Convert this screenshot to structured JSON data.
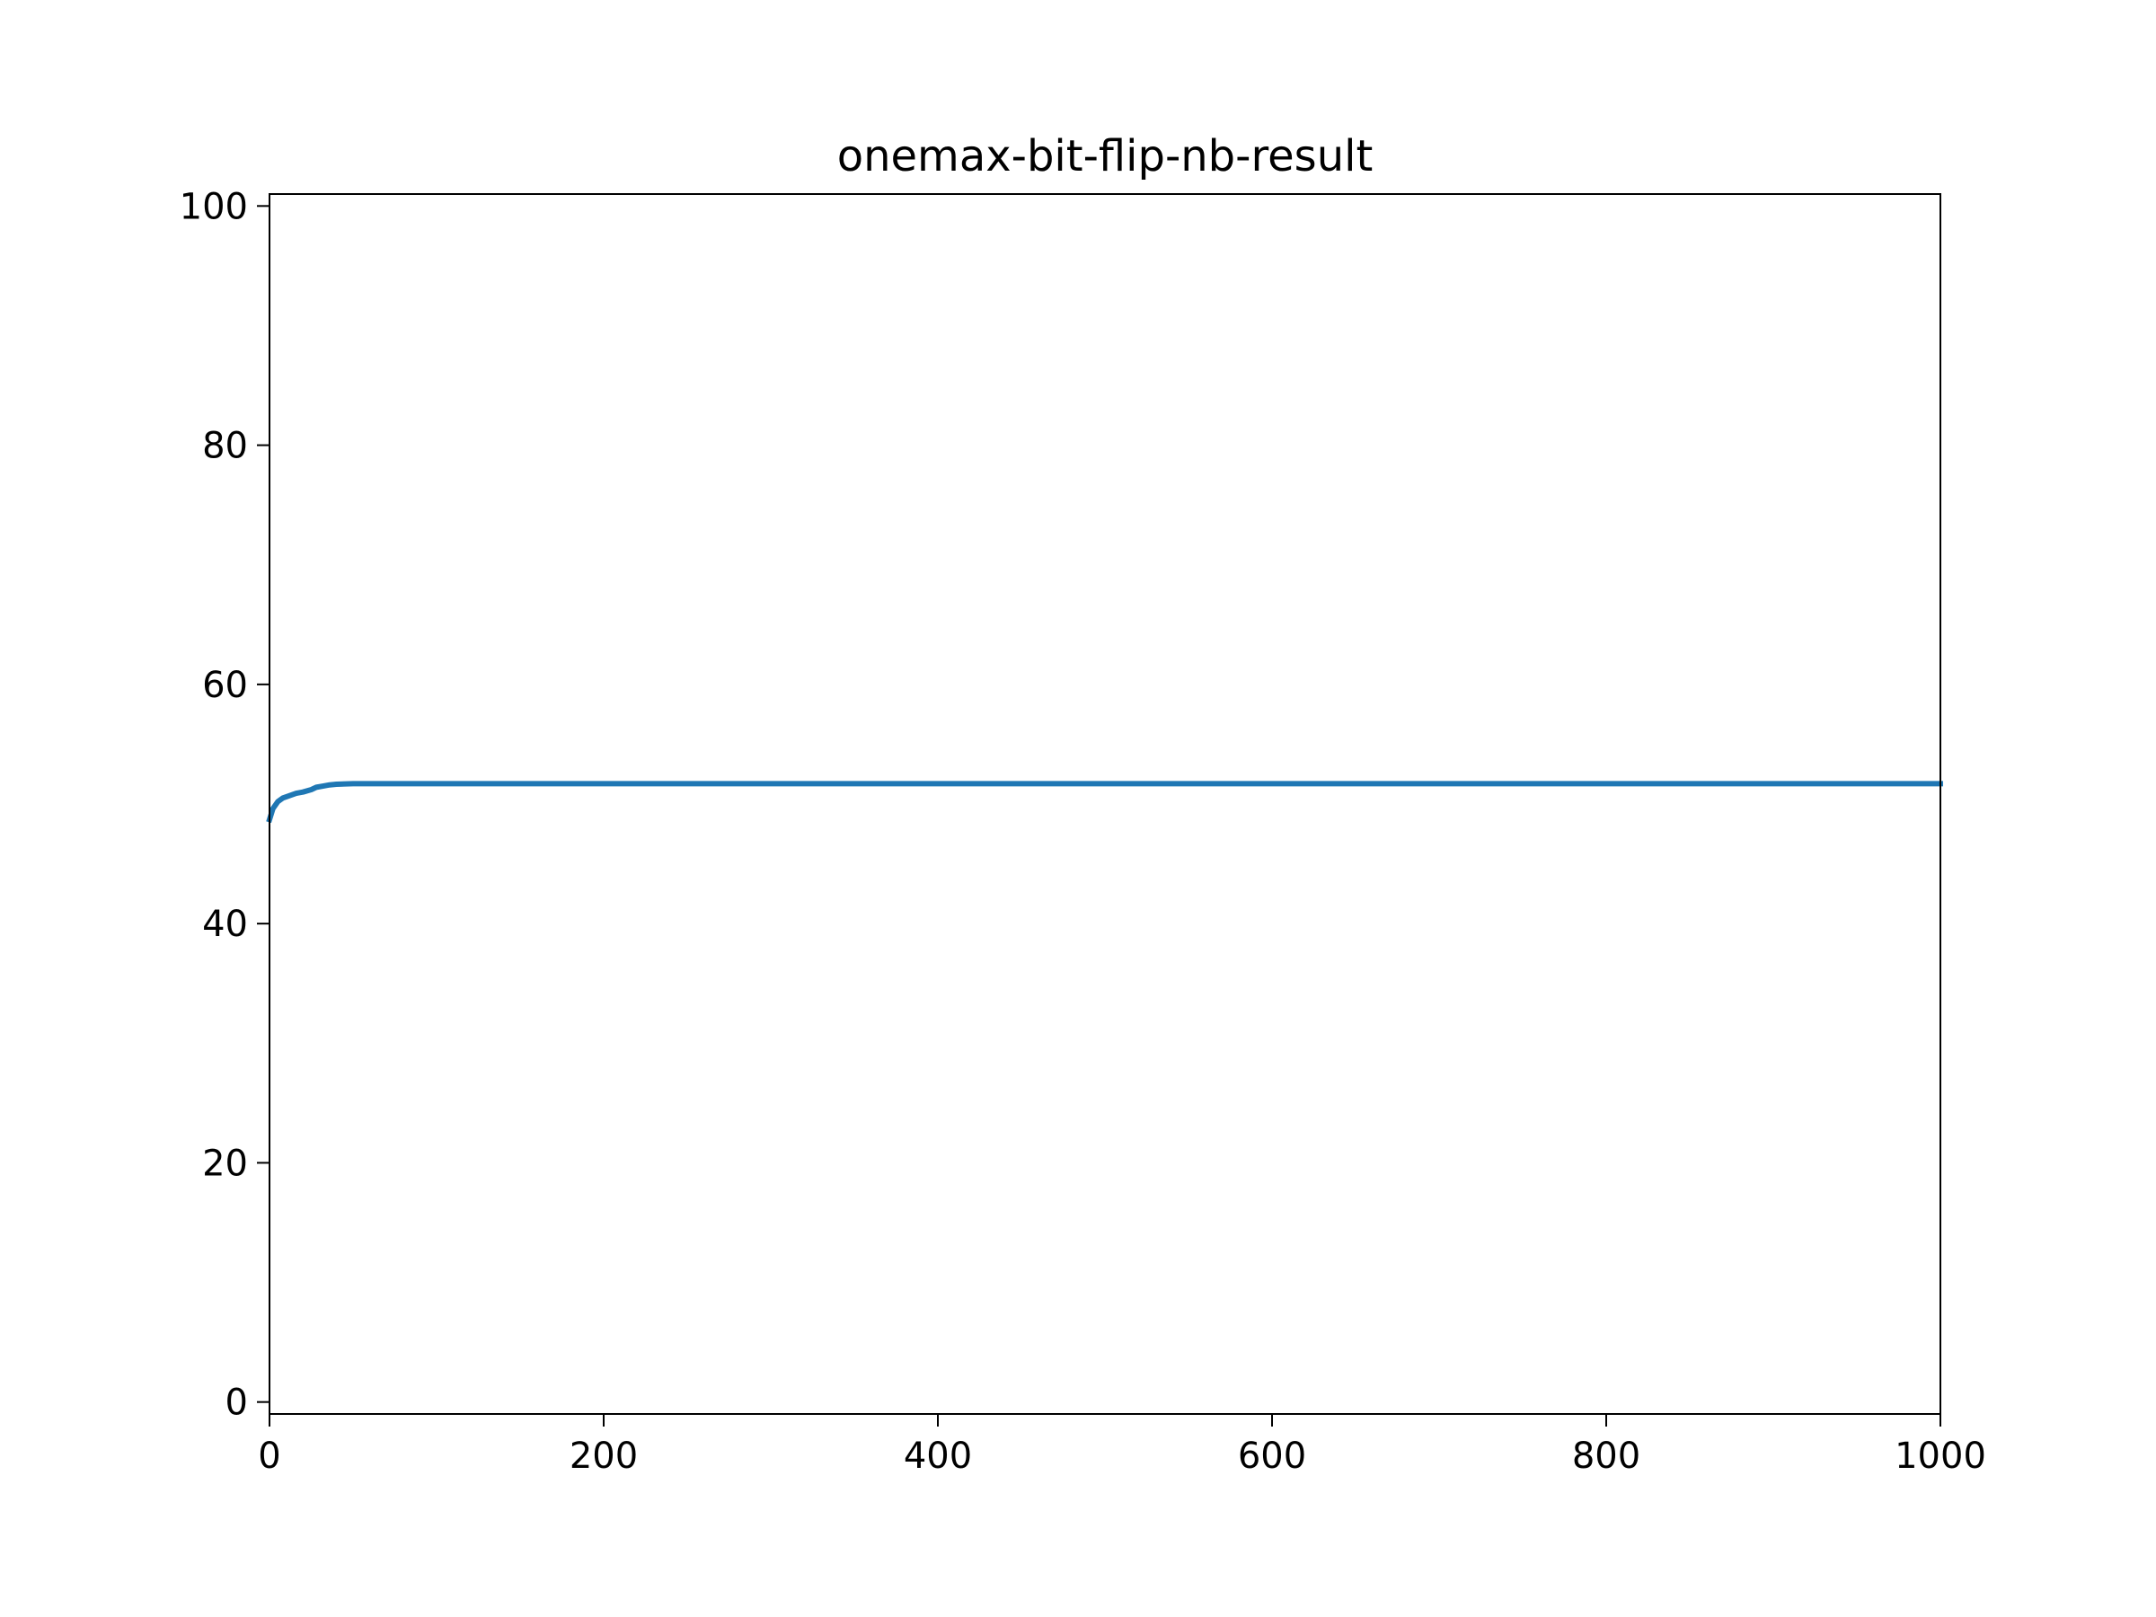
{
  "chart_data": {
    "type": "line",
    "title": "onemax-bit-flip-nb-result",
    "xlabel": "",
    "ylabel": "",
    "xlim": [
      0,
      1000
    ],
    "ylim": [
      -1,
      101
    ],
    "xticks": [
      0,
      200,
      400,
      600,
      800,
      1000
    ],
    "yticks": [
      0,
      20,
      40,
      60,
      80,
      100
    ],
    "grid": false,
    "legend": "none",
    "series": [
      {
        "color": "#1f77b4",
        "x": [
          0,
          2,
          5,
          8,
          12,
          16,
          20,
          25,
          28,
          32,
          36,
          40,
          50,
          100,
          200,
          400,
          600,
          800,
          1000
        ],
        "y": [
          48.7,
          49.6,
          50.2,
          50.5,
          50.7,
          50.9,
          51.0,
          51.2,
          51.4,
          51.5,
          51.6,
          51.65,
          51.7,
          51.7,
          51.7,
          51.7,
          51.7,
          51.7,
          51.7
        ]
      }
    ]
  }
}
